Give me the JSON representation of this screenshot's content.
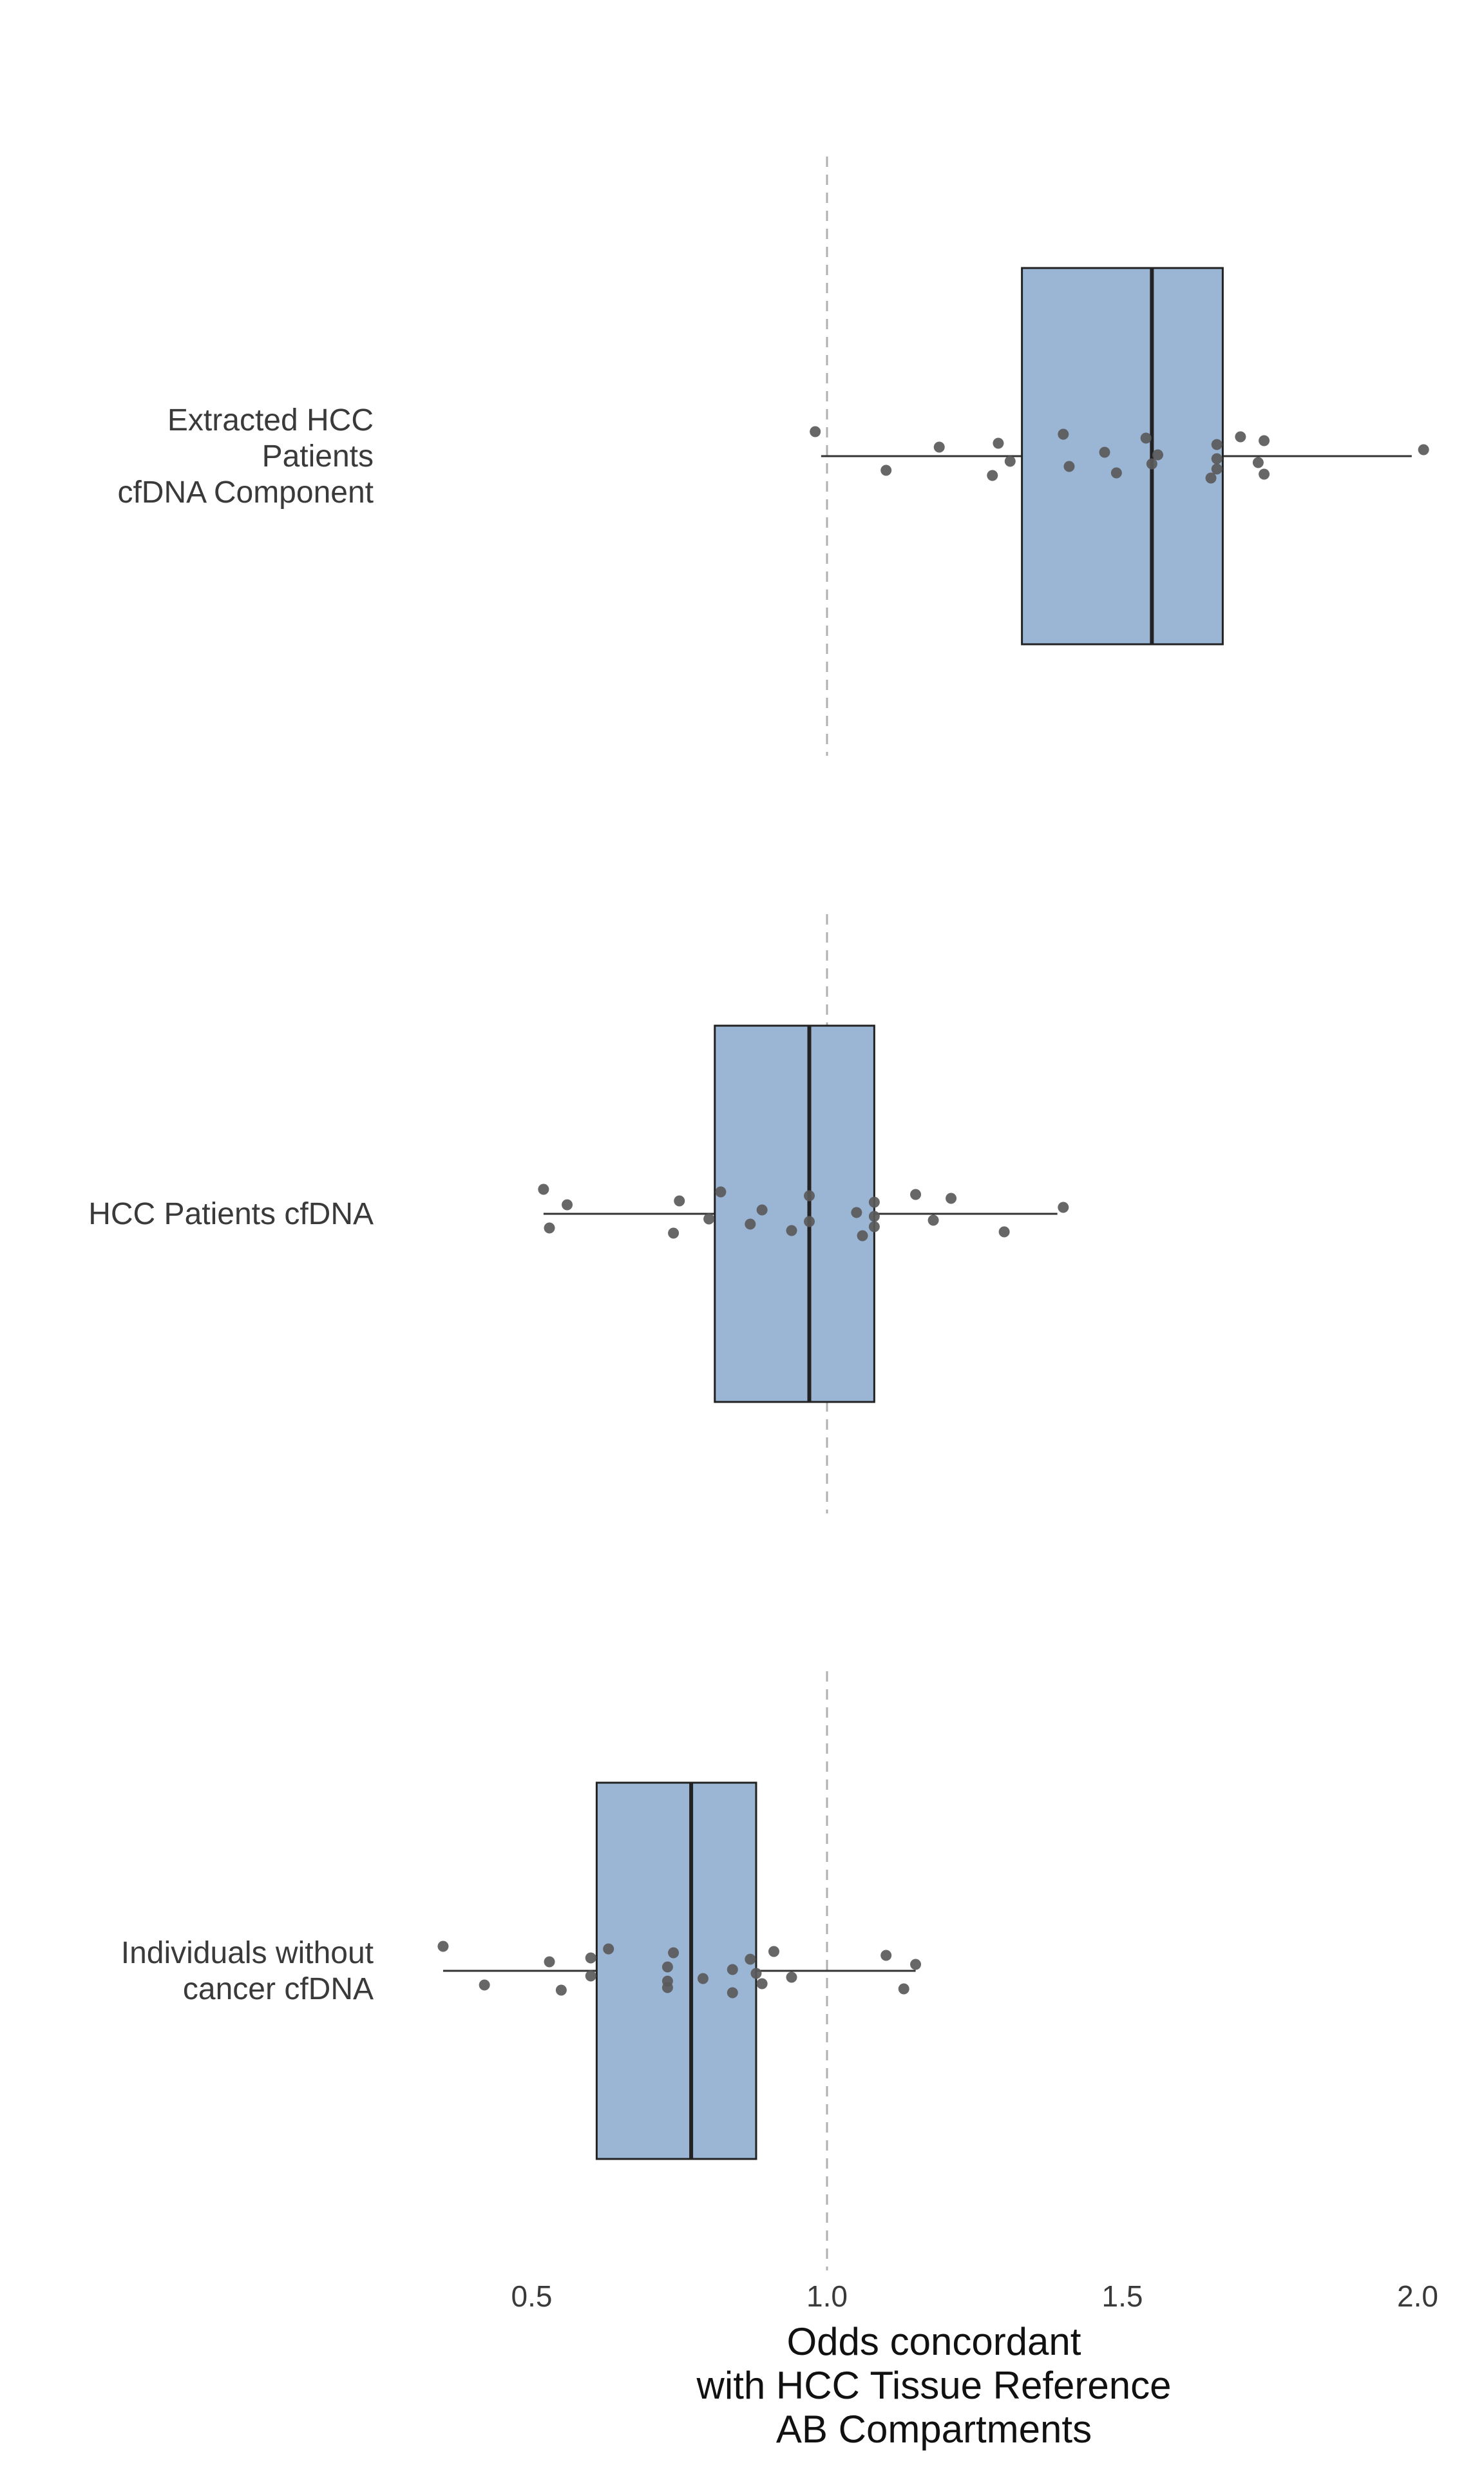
{
  "chart_data": {
    "type": "boxplot",
    "orientation": "horizontal",
    "xlabel": [
      "Odds concordant",
      "with HCC Tissue Reference",
      "AB Compartments"
    ],
    "xlim": [
      0.0,
      2.0
    ],
    "xticks": [
      0.5,
      1.0,
      1.5,
      2.0
    ],
    "xtick_labels": [
      "0.5",
      "1.0",
      "1.5",
      "2.0"
    ],
    "reference_line": 1.0,
    "grid": false,
    "colors": {
      "box_fill": "#9bb5d4",
      "box_edge": "#222222",
      "points": "#5a5a5a",
      "reference_line": "#b0b0b0"
    },
    "groups": [
      {
        "label": [
          "Extracted HCC",
          "Patients",
          "cfDNA Component"
        ],
        "box": {
          "whisker_low": 0.99,
          "q1": 1.33,
          "median": 1.55,
          "q3": 1.67,
          "whisker_high": 1.99
        },
        "points": [
          0.98,
          1.1,
          1.19,
          1.28,
          1.29,
          1.31,
          1.4,
          1.41,
          1.47,
          1.49,
          1.54,
          1.55,
          1.56,
          1.65,
          1.66,
          1.66,
          1.66,
          1.7,
          1.73,
          1.74,
          1.74,
          2.01
        ]
      },
      {
        "label": [
          "HCC Patients cfDNA"
        ],
        "box": {
          "whisker_low": 0.52,
          "q1": 0.81,
          "median": 0.97,
          "q3": 1.08,
          "whisker_high": 1.39
        },
        "points": [
          0.52,
          0.53,
          0.56,
          0.74,
          0.75,
          0.8,
          0.82,
          0.87,
          0.89,
          0.94,
          0.97,
          0.97,
          1.05,
          1.06,
          1.08,
          1.08,
          1.08,
          1.15,
          1.18,
          1.21,
          1.3,
          1.4
        ]
      },
      {
        "label": [
          "Individuals without",
          "cancer cfDNA"
        ],
        "box": {
          "whisker_low": 0.35,
          "q1": 0.61,
          "median": 0.77,
          "q3": 0.88,
          "whisker_high": 1.15
        },
        "points": [
          0.35,
          0.42,
          0.53,
          0.55,
          0.6,
          0.6,
          0.63,
          0.73,
          0.73,
          0.73,
          0.74,
          0.79,
          0.84,
          0.84,
          0.87,
          0.88,
          0.89,
          0.91,
          0.94,
          1.1,
          1.13,
          1.15
        ]
      }
    ]
  }
}
